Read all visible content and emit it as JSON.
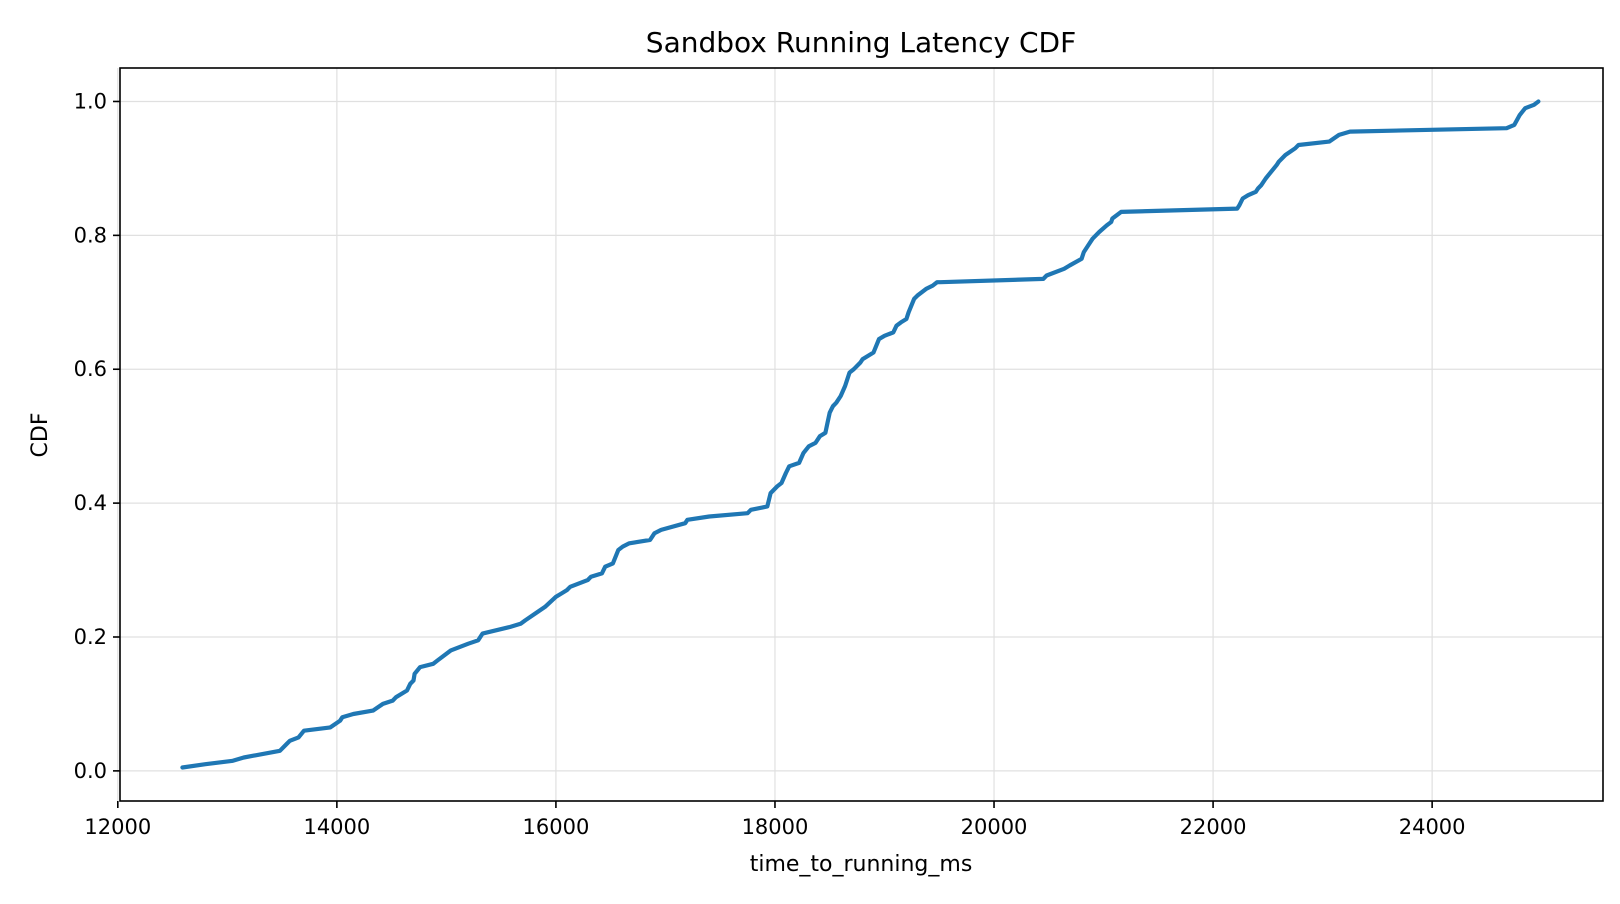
{
  "chart_data": {
    "type": "line",
    "title": "Sandbox Running Latency CDF",
    "xlabel": "time_to_running_ms",
    "ylabel": "CDF",
    "xlim": [
      12020,
      25560
    ],
    "ylim": [
      -0.045,
      1.05
    ],
    "x_ticks": [
      12000,
      14000,
      16000,
      18000,
      20000,
      22000,
      24000
    ],
    "x_tick_labels": [
      "12000",
      "14000",
      "16000",
      "18000",
      "20000",
      "22000",
      "24000"
    ],
    "y_ticks": [
      0.0,
      0.2,
      0.4,
      0.6,
      0.8,
      1.0
    ],
    "y_tick_labels": [
      "0.0",
      "0.2",
      "0.4",
      "0.6",
      "0.8",
      "1.0"
    ],
    "grid": true,
    "legend": "none",
    "line_color": "#1f77b4",
    "series": [
      {
        "x": [
          12590,
          12800,
          13050,
          13150,
          13480,
          13540,
          13570,
          13650,
          13700,
          13940,
          14030,
          14050,
          14150,
          14330,
          14420,
          14510,
          14540,
          14640,
          14670,
          14700,
          14710,
          14760,
          14880,
          14920,
          15040,
          15200,
          15290,
          15330,
          15580,
          15680,
          15720,
          15810,
          15900,
          16000,
          16050,
          16100,
          16130,
          16290,
          16320,
          16420,
          16450,
          16520,
          16570,
          16610,
          16670,
          16860,
          16900,
          16960,
          17180,
          17200,
          17400,
          17750,
          17780,
          17930,
          17960,
          18020,
          18060,
          18100,
          18130,
          18220,
          18260,
          18310,
          18370,
          18410,
          18460,
          18480,
          18500,
          18530,
          18560,
          18600,
          18640,
          18680,
          18720,
          18780,
          18800,
          18900,
          18950,
          19000,
          19080,
          19110,
          19150,
          19200,
          19220,
          19270,
          19300,
          19380,
          19440,
          19480,
          19510,
          20450,
          20480,
          20640,
          20690,
          20800,
          20820,
          20860,
          20900,
          20960,
          21030,
          21070,
          21080,
          21160,
          22220,
          22240,
          22270,
          22320,
          22390,
          22410,
          22440,
          22480,
          22530,
          22580,
          22600,
          22660,
          22750,
          22780,
          23060,
          23150,
          23250,
          24680,
          24750,
          24800,
          24850,
          24930,
          24970
        ],
        "y": [
          0.005,
          0.01,
          0.015,
          0.02,
          0.03,
          0.04,
          0.045,
          0.05,
          0.06,
          0.065,
          0.075,
          0.08,
          0.085,
          0.09,
          0.1,
          0.105,
          0.11,
          0.12,
          0.13,
          0.135,
          0.145,
          0.155,
          0.16,
          0.165,
          0.18,
          0.19,
          0.195,
          0.205,
          0.215,
          0.22,
          0.225,
          0.235,
          0.245,
          0.26,
          0.265,
          0.27,
          0.275,
          0.285,
          0.29,
          0.295,
          0.305,
          0.31,
          0.33,
          0.335,
          0.34,
          0.345,
          0.355,
          0.36,
          0.37,
          0.375,
          0.38,
          0.385,
          0.39,
          0.395,
          0.415,
          0.425,
          0.43,
          0.445,
          0.455,
          0.46,
          0.475,
          0.485,
          0.49,
          0.5,
          0.505,
          0.52,
          0.535,
          0.545,
          0.55,
          0.56,
          0.575,
          0.595,
          0.6,
          0.61,
          0.615,
          0.625,
          0.645,
          0.65,
          0.655,
          0.665,
          0.67,
          0.675,
          0.685,
          0.705,
          0.71,
          0.72,
          0.725,
          0.73,
          0.73,
          0.735,
          0.74,
          0.75,
          0.755,
          0.765,
          0.775,
          0.785,
          0.795,
          0.805,
          0.815,
          0.82,
          0.825,
          0.835,
          0.84,
          0.845,
          0.855,
          0.86,
          0.865,
          0.87,
          0.875,
          0.885,
          0.895,
          0.905,
          0.91,
          0.92,
          0.93,
          0.935,
          0.94,
          0.95,
          0.955,
          0.96,
          0.965,
          0.98,
          0.99,
          0.995,
          1.0
        ]
      }
    ]
  }
}
